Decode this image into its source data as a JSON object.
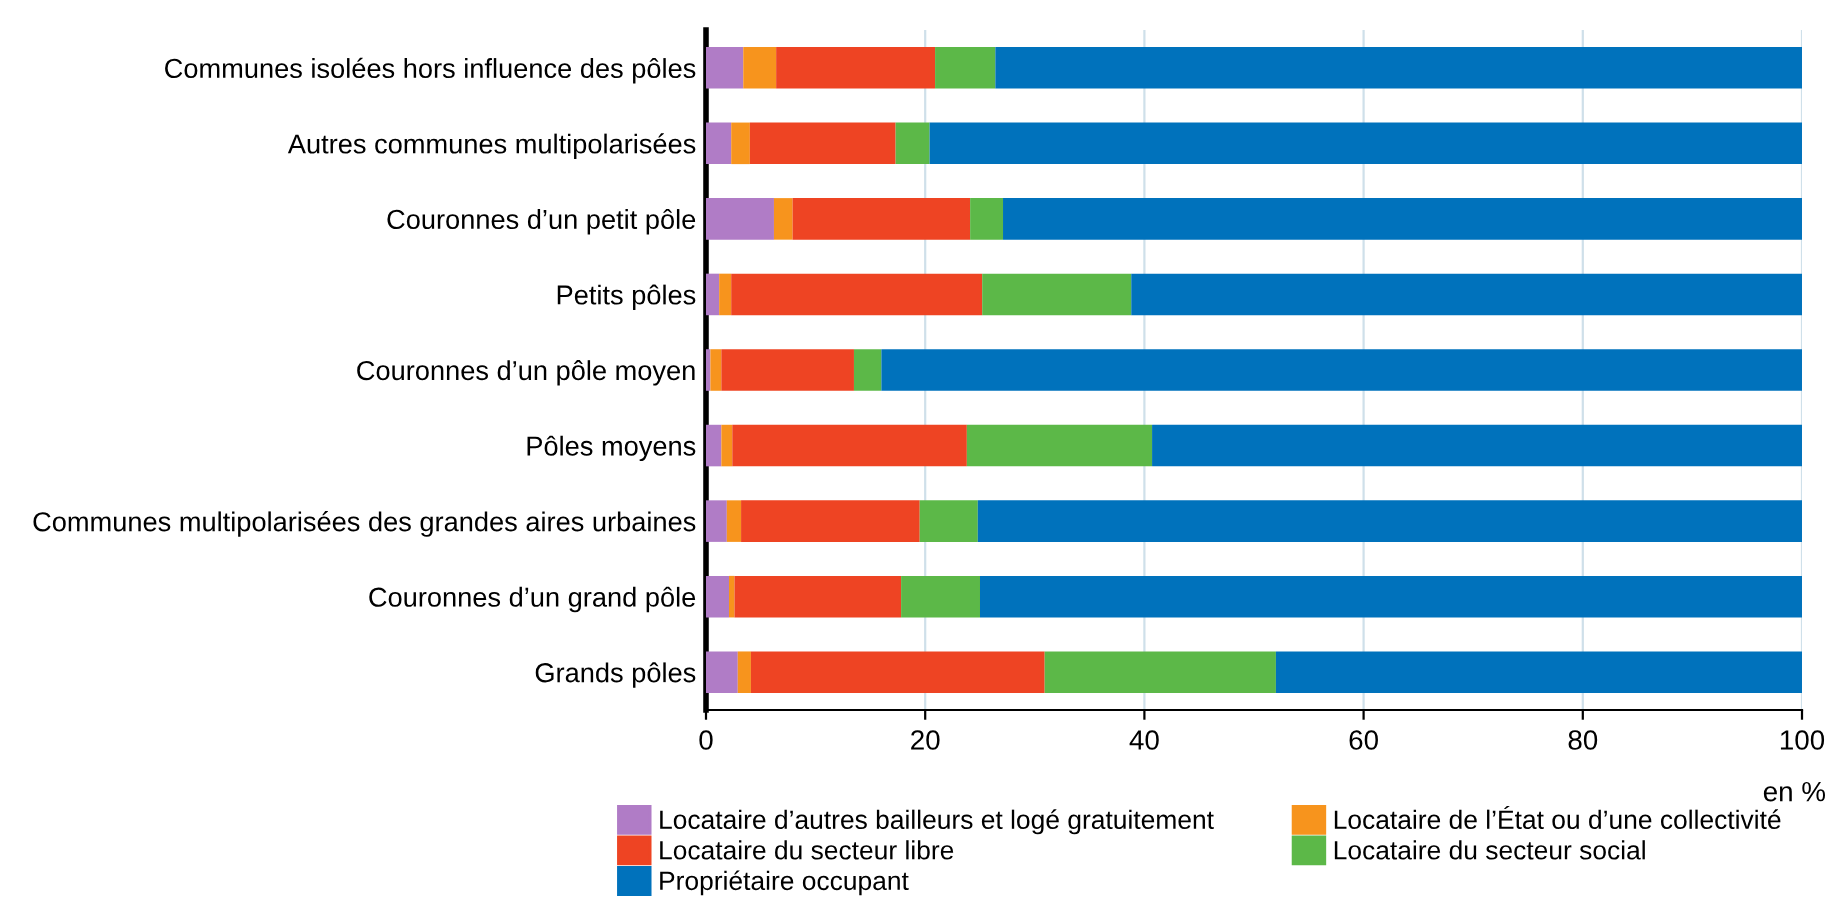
{
  "chart_data": {
    "type": "bar",
    "orientation": "horizontal",
    "stacked": true,
    "categories": [
      "Communes isolées hors influence des pôles",
      "Autres communes multipolarisées",
      "Couronnes d’un petit pôle",
      "Petits pôles",
      "Couronnes d’un pôle moyen",
      "Pôles moyens",
      "Communes multipolarisées des grandes aires urbaines",
      "Couronnes d’un grand pôle",
      "Grands pôles"
    ],
    "series": [
      {
        "name": "Locataire d’autres bailleurs et logé gratuitement",
        "color": "#b07cc6",
        "values": [
          3.4,
          2.3,
          6.2,
          1.2,
          0.4,
          1.4,
          1.9,
          2.1,
          2.9
        ]
      },
      {
        "name": "Locataire de l’État ou d’une collectivité",
        "color": "#f7941d",
        "values": [
          3.0,
          1.7,
          1.7,
          1.1,
          1.0,
          1.0,
          1.3,
          0.5,
          1.2
        ]
      },
      {
        "name": "Locataire du secteur libre",
        "color": "#ee4423",
        "values": [
          14.5,
          13.3,
          16.2,
          22.9,
          12.1,
          21.4,
          16.3,
          15.2,
          26.8
        ]
      },
      {
        "name": "Locataire du secteur social",
        "color": "#5cb848",
        "values": [
          5.5,
          3.1,
          3.0,
          13.6,
          2.5,
          16.9,
          5.3,
          7.2,
          21.1
        ]
      },
      {
        "name": "Propriétaire occupant",
        "color": "#0072bc",
        "values": [
          73.6,
          79.6,
          72.9,
          61.2,
          84.0,
          59.3,
          75.2,
          75.0,
          48.0
        ]
      }
    ],
    "xlim": [
      0,
      100
    ],
    "xticks": [
      0,
      20,
      40,
      60,
      80,
      100
    ],
    "xlabel": "en %",
    "grid": "x",
    "legend": "bottom"
  }
}
